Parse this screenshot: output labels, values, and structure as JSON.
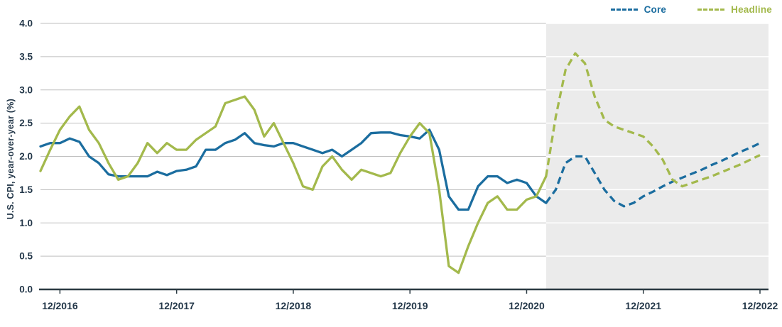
{
  "chart_data": {
    "type": "line",
    "title": "",
    "xlabel": "",
    "ylabel": "U.S. CPI, year-over-year (%)",
    "ylim": [
      0.0,
      4.0
    ],
    "y_ticks": [
      0.0,
      0.5,
      1.0,
      1.5,
      2.0,
      2.5,
      3.0,
      3.5,
      4.0
    ],
    "x_start": "10/2016",
    "x_end": "12/2022",
    "frequency": "monthly",
    "grid": "horizontal",
    "legend_position": "top-right",
    "forecast_start_index": 52,
    "forecast_start_label": "02/2021",
    "forecast_region_shaded": true,
    "x_ticks": [
      {
        "label": "12/2016",
        "index": 2
      },
      {
        "label": "12/2017",
        "index": 14
      },
      {
        "label": "12/2018",
        "index": 26
      },
      {
        "label": "12/2019",
        "index": 38
      },
      {
        "label": "12/2020",
        "index": 50
      },
      {
        "label": "12/2021",
        "index": 62
      },
      {
        "label": "12/2022",
        "index": 74
      }
    ],
    "colors": {
      "core": "#1b6d9f",
      "headline": "#a3b94c",
      "forecast_shade": "#ebebeb",
      "gridline": "#bfbfbf",
      "gridline_on_shade": "#ffffff",
      "axis_line": "#2b3a42",
      "axis_text": "#233749"
    },
    "series": [
      {
        "key": "core",
        "name": "Core",
        "color": "#1b6d9f",
        "style_historical": "solid",
        "style_forecast": "dashed",
        "values": [
          2.15,
          2.2,
          2.2,
          2.27,
          2.22,
          2.0,
          1.9,
          1.73,
          1.7,
          1.7,
          1.7,
          1.7,
          1.77,
          1.72,
          1.78,
          1.8,
          1.85,
          2.1,
          2.1,
          2.2,
          2.25,
          2.35,
          2.2,
          2.17,
          2.15,
          2.2,
          2.2,
          2.15,
          2.1,
          2.05,
          2.1,
          2.0,
          2.1,
          2.2,
          2.35,
          2.36,
          2.36,
          2.32,
          2.3,
          2.27,
          2.4,
          2.1,
          1.4,
          1.2,
          1.2,
          1.55,
          1.7,
          1.7,
          1.6,
          1.65,
          1.6,
          1.4,
          1.3,
          1.5,
          1.9,
          2.0,
          2.0,
          1.75,
          1.5,
          1.33,
          1.25,
          1.3,
          1.4,
          1.47,
          1.55,
          1.62,
          1.68,
          1.74,
          1.8,
          1.87,
          1.93,
          2.0,
          2.07,
          2.13,
          2.2
        ]
      },
      {
        "key": "headline",
        "name": "Headline",
        "color": "#a3b94c",
        "style_historical": "solid",
        "style_forecast": "dashed",
        "values": [
          1.78,
          2.1,
          2.4,
          2.6,
          2.75,
          2.4,
          2.2,
          1.9,
          1.65,
          1.7,
          1.9,
          2.2,
          2.05,
          2.2,
          2.1,
          2.1,
          2.25,
          2.35,
          2.45,
          2.8,
          2.85,
          2.9,
          2.7,
          2.3,
          2.5,
          2.2,
          1.9,
          1.55,
          1.5,
          1.85,
          2.0,
          1.8,
          1.65,
          1.8,
          1.75,
          1.7,
          1.75,
          2.05,
          2.3,
          2.5,
          2.35,
          1.5,
          0.35,
          0.25,
          0.65,
          1.0,
          1.3,
          1.4,
          1.2,
          1.2,
          1.35,
          1.4,
          1.7,
          2.6,
          3.3,
          3.55,
          3.4,
          2.9,
          2.55,
          2.45,
          2.4,
          2.35,
          2.3,
          2.15,
          1.95,
          1.65,
          1.55,
          1.6,
          1.65,
          1.7,
          1.76,
          1.82,
          1.88,
          1.95,
          2.02
        ]
      }
    ]
  }
}
